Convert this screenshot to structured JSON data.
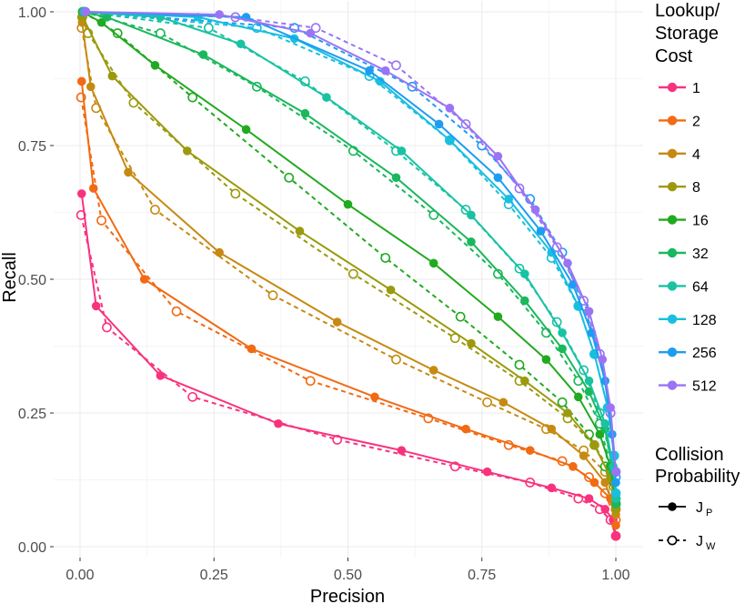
{
  "chart_data": {
    "type": "line",
    "xlabel": "Precision",
    "ylabel": "Recall",
    "xlim": [
      0,
      1
    ],
    "ylim": [
      0,
      1
    ],
    "x_ticks": [
      "0.00",
      "0.25",
      "0.50",
      "0.75",
      "1.00"
    ],
    "y_ticks": [
      "0.00",
      "0.25",
      "0.50",
      "0.75",
      "1.00"
    ],
    "grid": true,
    "legend_placement": "right",
    "color_legend": {
      "title": [
        "Lookup/",
        "Storage",
        "Cost"
      ],
      "items": [
        {
          "label": "1",
          "color": "#F8337E"
        },
        {
          "label": "2",
          "color": "#F26A13"
        },
        {
          "label": "4",
          "color": "#C68A12"
        },
        {
          "label": "8",
          "color": "#9B9A0E"
        },
        {
          "label": "16",
          "color": "#21AA1F"
        },
        {
          "label": "32",
          "color": "#1AB85C"
        },
        {
          "label": "64",
          "color": "#19C2A3"
        },
        {
          "label": "128",
          "color": "#18BFDF"
        },
        {
          "label": "256",
          "color": "#1E9CF2"
        },
        {
          "label": "512",
          "color": "#9A74F4"
        }
      ]
    },
    "linetype_legend": {
      "title": [
        "Collision",
        "Probability"
      ],
      "items": [
        {
          "label": "J",
          "sub": "P",
          "style": "solid",
          "marker": "filled"
        },
        {
          "label": "J",
          "sub": "W",
          "style": "dashed",
          "marker": "open"
        }
      ]
    },
    "series": [
      {
        "cost": "1",
        "collision": "J_P",
        "color": "#F8337E",
        "x": [
          0.003,
          0.03,
          0.15,
          0.37,
          0.6,
          0.76,
          0.88,
          0.95,
          0.98,
          0.995,
          1.0
        ],
        "y": [
          0.66,
          0.45,
          0.32,
          0.23,
          0.18,
          0.14,
          0.11,
          0.09,
          0.07,
          0.05,
          0.02
        ]
      },
      {
        "cost": "1",
        "collision": "J_W",
        "color": "#F8337E",
        "x": [
          0.002,
          0.05,
          0.21,
          0.48,
          0.7,
          0.84,
          0.93,
          0.97,
          0.99,
          1.0
        ],
        "y": [
          0.62,
          0.41,
          0.28,
          0.2,
          0.15,
          0.12,
          0.09,
          0.07,
          0.05,
          0.02
        ]
      },
      {
        "cost": "2",
        "collision": "J_P",
        "color": "#F26A13",
        "x": [
          0.003,
          0.025,
          0.12,
          0.32,
          0.55,
          0.72,
          0.84,
          0.92,
          0.96,
          0.99,
          1.0
        ],
        "y": [
          0.87,
          0.67,
          0.5,
          0.37,
          0.28,
          0.22,
          0.18,
          0.15,
          0.12,
          0.09,
          0.04
        ]
      },
      {
        "cost": "2",
        "collision": "J_W",
        "color": "#F26A13",
        "x": [
          0.002,
          0.04,
          0.18,
          0.43,
          0.65,
          0.8,
          0.9,
          0.95,
          0.98,
          1.0
        ],
        "y": [
          0.84,
          0.61,
          0.44,
          0.31,
          0.24,
          0.19,
          0.16,
          0.13,
          0.1,
          0.05
        ]
      },
      {
        "cost": "4",
        "collision": "J_P",
        "color": "#C68A12",
        "x": [
          0.004,
          0.02,
          0.09,
          0.26,
          0.48,
          0.66,
          0.79,
          0.88,
          0.94,
          0.98,
          1.0
        ],
        "y": [
          0.98,
          0.86,
          0.7,
          0.55,
          0.42,
          0.33,
          0.27,
          0.22,
          0.17,
          0.12,
          0.06
        ]
      },
      {
        "cost": "4",
        "collision": "J_W",
        "color": "#C68A12",
        "x": [
          0.003,
          0.03,
          0.14,
          0.36,
          0.59,
          0.76,
          0.87,
          0.94,
          0.98,
          1.0
        ],
        "y": [
          0.97,
          0.82,
          0.63,
          0.47,
          0.35,
          0.27,
          0.22,
          0.18,
          0.14,
          0.07
        ]
      },
      {
        "cost": "8",
        "collision": "J_P",
        "color": "#9B9A0E",
        "x": [
          0.005,
          0.06,
          0.2,
          0.41,
          0.58,
          0.73,
          0.83,
          0.91,
          0.96,
          0.99,
          1.0
        ],
        "y": [
          0.99,
          0.88,
          0.74,
          0.59,
          0.48,
          0.38,
          0.31,
          0.25,
          0.19,
          0.13,
          0.07
        ]
      },
      {
        "cost": "8",
        "collision": "J_W",
        "color": "#9B9A0E",
        "x": [
          0.004,
          0.015,
          0.1,
          0.29,
          0.51,
          0.7,
          0.82,
          0.91,
          0.96,
          0.99,
          1.0
        ],
        "y": [
          0.99,
          0.96,
          0.83,
          0.66,
          0.51,
          0.39,
          0.31,
          0.24,
          0.19,
          0.14,
          0.08
        ]
      },
      {
        "cost": "16",
        "collision": "J_P",
        "color": "#21AA1F",
        "x": [
          0.005,
          0.04,
          0.14,
          0.31,
          0.5,
          0.66,
          0.78,
          0.87,
          0.93,
          0.97,
          0.99,
          1.0
        ],
        "y": [
          1.0,
          0.98,
          0.9,
          0.78,
          0.64,
          0.53,
          0.43,
          0.35,
          0.28,
          0.21,
          0.15,
          0.08
        ]
      },
      {
        "cost": "16",
        "collision": "J_W",
        "color": "#21AA1F",
        "x": [
          0.005,
          0.07,
          0.21,
          0.39,
          0.57,
          0.71,
          0.82,
          0.9,
          0.95,
          0.98,
          1.0
        ],
        "y": [
          1.0,
          0.96,
          0.84,
          0.69,
          0.54,
          0.43,
          0.34,
          0.27,
          0.21,
          0.15,
          0.08
        ]
      },
      {
        "cost": "32",
        "collision": "J_P",
        "color": "#1AB85C",
        "x": [
          0.006,
          0.05,
          0.23,
          0.42,
          0.59,
          0.73,
          0.83,
          0.9,
          0.95,
          0.98,
          0.995,
          1.0
        ],
        "y": [
          1.0,
          0.99,
          0.92,
          0.81,
          0.69,
          0.57,
          0.46,
          0.37,
          0.29,
          0.22,
          0.14,
          0.08
        ]
      },
      {
        "cost": "32",
        "collision": "J_W",
        "color": "#1AB85C",
        "x": [
          0.006,
          0.15,
          0.33,
          0.51,
          0.66,
          0.78,
          0.87,
          0.93,
          0.97,
          0.99,
          1.0
        ],
        "y": [
          1.0,
          0.96,
          0.86,
          0.74,
          0.62,
          0.51,
          0.4,
          0.31,
          0.23,
          0.15,
          0.08
        ]
      },
      {
        "cost": "64",
        "collision": "J_P",
        "color": "#19C2A3",
        "x": [
          0.007,
          0.15,
          0.3,
          0.46,
          0.6,
          0.73,
          0.83,
          0.9,
          0.95,
          0.98,
          0.995,
          1.0
        ],
        "y": [
          1.0,
          0.99,
          0.94,
          0.84,
          0.74,
          0.62,
          0.51,
          0.4,
          0.31,
          0.23,
          0.15,
          0.09
        ]
      },
      {
        "cost": "64",
        "collision": "J_W",
        "color": "#19C2A3",
        "x": [
          0.007,
          0.24,
          0.42,
          0.59,
          0.72,
          0.82,
          0.89,
          0.94,
          0.97,
          0.99,
          1.0
        ],
        "y": [
          1.0,
          0.97,
          0.87,
          0.74,
          0.63,
          0.52,
          0.42,
          0.33,
          0.25,
          0.17,
          0.09
        ]
      },
      {
        "cost": "128",
        "collision": "J_P",
        "color": "#18BFDF",
        "x": [
          0.008,
          0.22,
          0.4,
          0.56,
          0.69,
          0.8,
          0.88,
          0.93,
          0.96,
          0.985,
          0.997,
          1.0
        ],
        "y": [
          1.0,
          0.99,
          0.95,
          0.87,
          0.76,
          0.65,
          0.55,
          0.45,
          0.36,
          0.26,
          0.17,
          0.1
        ]
      },
      {
        "cost": "128",
        "collision": "J_W",
        "color": "#18BFDF",
        "x": [
          0.008,
          0.33,
          0.54,
          0.69,
          0.8,
          0.88,
          0.93,
          0.96,
          0.985,
          0.997,
          1.0
        ],
        "y": [
          1.0,
          0.97,
          0.88,
          0.76,
          0.64,
          0.54,
          0.45,
          0.36,
          0.26,
          0.17,
          0.1
        ]
      },
      {
        "cost": "256",
        "collision": "J_P",
        "color": "#1E9CF2",
        "x": [
          0.009,
          0.31,
          0.54,
          0.67,
          0.78,
          0.86,
          0.92,
          0.955,
          0.98,
          0.993,
          1.0
        ],
        "y": [
          1.0,
          0.99,
          0.89,
          0.79,
          0.69,
          0.59,
          0.49,
          0.4,
          0.31,
          0.21,
          0.12
        ]
      },
      {
        "cost": "256",
        "collision": "J_W",
        "color": "#1E9CF2",
        "x": [
          0.009,
          0.4,
          0.62,
          0.75,
          0.84,
          0.9,
          0.94,
          0.97,
          0.99,
          1.0
        ],
        "y": [
          1.0,
          0.97,
          0.86,
          0.75,
          0.65,
          0.55,
          0.45,
          0.36,
          0.25,
          0.13
        ]
      },
      {
        "cost": "512",
        "collision": "J_P",
        "color": "#9A74F4",
        "x": [
          0.01,
          0.26,
          0.43,
          0.57,
          0.69,
          0.78,
          0.85,
          0.91,
          0.95,
          0.975,
          0.99,
          1.0
        ],
        "y": [
          1.0,
          0.995,
          0.96,
          0.89,
          0.82,
          0.73,
          0.63,
          0.53,
          0.44,
          0.35,
          0.26,
          0.14
        ]
      },
      {
        "cost": "512",
        "collision": "J_W",
        "color": "#9A74F4",
        "x": [
          0.01,
          0.29,
          0.44,
          0.59,
          0.72,
          0.82,
          0.89,
          0.94,
          0.97,
          0.99,
          1.0
        ],
        "y": [
          1.0,
          0.99,
          0.97,
          0.9,
          0.79,
          0.67,
          0.56,
          0.46,
          0.36,
          0.25,
          0.14
        ]
      }
    ]
  }
}
